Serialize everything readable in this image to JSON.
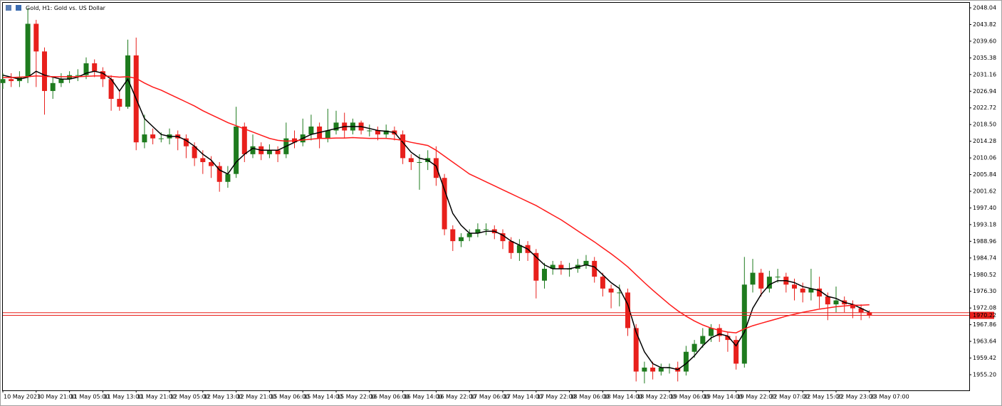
{
  "chart_data": {
    "type": "candlestick",
    "title": "Gold, H1:  Gold vs. US Dollar",
    "categories": [
      "10 May 2023",
      null,
      null,
      null,
      "10 May 21:00",
      null,
      null,
      null,
      "11 May 05:00",
      null,
      null,
      null,
      "11 May 13:00",
      null,
      null,
      null,
      "11 May 21:00",
      null,
      null,
      null,
      "12 May 05:00",
      null,
      null,
      null,
      "12 May 13:00",
      null,
      null,
      null,
      "12 May 21:00",
      null,
      null,
      null,
      "15 May 06:00",
      null,
      null,
      null,
      "15 May 14:00",
      null,
      null,
      null,
      "15 May 22:00",
      null,
      null,
      null,
      "16 May 06:00",
      null,
      null,
      null,
      "16 May 14:00",
      null,
      null,
      null,
      "16 May 22:00",
      null,
      null,
      null,
      "17 May 06:00",
      null,
      null,
      null,
      "17 May 14:00",
      null,
      null,
      null,
      "17 May 22:00",
      null,
      null,
      null,
      "18 May 06:00",
      null,
      null,
      null,
      "18 May 14:00",
      null,
      null,
      null,
      "18 May 22:00",
      null,
      null,
      null,
      "19 May 06:00",
      null,
      null,
      null,
      "19 May 14:00",
      null,
      null,
      null,
      "19 May 22:00",
      null,
      null,
      null,
      "22 May 07:00",
      null,
      null,
      null,
      "22 May 15:00",
      null,
      null,
      null,
      "22 May 23:00",
      null,
      null,
      null,
      "23 May 07:00"
    ],
    "open": [
      2029,
      2030,
      2029.5,
      2030.5,
      2044,
      2037,
      2027,
      2029,
      2030,
      2031,
      2031,
      2034,
      2032,
      2030,
      2025,
      2023,
      2036,
      2014,
      2016,
      2015,
      2015,
      2016,
      2015,
      2013,
      2010,
      2009,
      2008,
      2004,
      2006,
      2018,
      2011,
      2013,
      2011,
      2012,
      2011,
      2015,
      2014,
      2016,
      2018,
      2015,
      2017,
      2019,
      2017,
      2019,
      2017,
      2017,
      2016,
      2017,
      2016,
      2010,
      2009,
      2009,
      2010,
      2005,
      1992,
      1989,
      1990,
      1991,
      1992,
      1992,
      1991,
      1989,
      1986,
      1988,
      1986,
      1979,
      1982,
      1983,
      1982,
      1982,
      1983,
      1984,
      1980,
      1977,
      1976,
      1976,
      1967,
      1956,
      1957,
      1956,
      1957,
      1957,
      1956,
      1961,
      1963,
      1965,
      1967,
      1965,
      1964,
      1958,
      1978,
      1981,
      1977,
      1980,
      1980,
      1978,
      1977,
      1976,
      1977,
      1975,
      1973,
      1974,
      1973,
      1972,
      1971
    ],
    "high": [
      2031.5,
      2031.5,
      2032,
      2048,
      2045,
      2038,
      2030.5,
      2031.5,
      2032,
      2032.5,
      2035.5,
      2035,
      2033,
      2031,
      2027,
      2040,
      2040.5,
      2021,
      2017.5,
      2016.5,
      2017.5,
      2017,
      2016,
      2014,
      2012,
      2010.5,
      2009,
      2008,
      2023,
      2019,
      2016,
      2014,
      2013.5,
      2013,
      2019,
      2017,
      2020,
      2021,
      2019,
      2022.5,
      2022,
      2021.5,
      2020,
      2019.5,
      2018.5,
      2018,
      2018.5,
      2018,
      2017,
      2011,
      2011,
      2012,
      2013,
      2006,
      1993,
      1991,
      1992,
      1993.5,
      1993.5,
      1993,
      1992,
      1990,
      1989.5,
      1989,
      1987,
      1983.5,
      1984,
      1984,
      1983.5,
      1984.5,
      1985.5,
      1985,
      1981,
      1978,
      1978,
      1977,
      1968,
      1958.5,
      1958.5,
      1958,
      1958,
      1958.5,
      1962.5,
      1964,
      1967,
      1968,
      1968,
      1966,
      1965,
      1985,
      1984.5,
      1982,
      1981.5,
      1982,
      1981,
      1979.5,
      1978.5,
      1982,
      1980,
      1976,
      1977.5,
      1975,
      1974,
      1973,
      1971.5
    ],
    "low": [
      2027.5,
      2028,
      2028,
      2029,
      2028,
      2021,
      2025,
      2028,
      2029,
      2029.5,
      2030,
      2030.5,
      2028,
      2022,
      2022,
      2022.5,
      2012,
      2012.5,
      2013.5,
      2014,
      2013.5,
      2012,
      2010,
      2008,
      2006,
      2005,
      2001.5,
      2002.5,
      2005,
      2009,
      2010,
      2009.5,
      2010,
      2009,
      2010,
      2012.5,
      2013,
      2014.5,
      2012.5,
      2014,
      2016,
      2015,
      2016,
      2016,
      2015.5,
      2014.5,
      2015,
      2014.5,
      2008.5,
      2007,
      2002,
      2007,
      2003,
      1990.5,
      1986.5,
      1987.5,
      1989,
      1990,
      1990.5,
      1989.5,
      1987,
      1984.5,
      1984,
      1984,
      1974.5,
      1977,
      1980.5,
      1980.5,
      1980,
      1981,
      1982,
      1978.5,
      1975,
      1972,
      1972.5,
      1965,
      1953.5,
      1953,
      1954,
      1955,
      1955.5,
      1953.5,
      1955,
      1959.5,
      1962,
      1963.5,
      1963.5,
      1961,
      1956.5,
      1957,
      1976,
      1975,
      1976,
      1978.5,
      1976,
      1974,
      1973.5,
      1974,
      1972,
      1969,
      1971,
      1971,
      1969.5,
      1969,
      1969.5
    ],
    "close": [
      2030,
      2029.5,
      2030.5,
      2044,
      2037,
      2027,
      2029,
      2030,
      2031,
      2031,
      2034,
      2032,
      2030,
      2025,
      2023,
      2036,
      2014,
      2016,
      2015,
      2015,
      2016,
      2015,
      2013,
      2010,
      2009,
      2008,
      2004,
      2006,
      2018,
      2011,
      2013,
      2011,
      2012,
      2011,
      2015,
      2014,
      2016,
      2018,
      2015,
      2017,
      2019,
      2017,
      2019,
      2017,
      2017,
      2016,
      2017,
      2016,
      2010,
      2009,
      2009,
      2010,
      2005,
      1992,
      1989,
      1990,
      1991,
      1992,
      1992,
      1991,
      1989,
      1986,
      1988,
      1986,
      1979,
      1982,
      1983,
      1982,
      1982,
      1983,
      1984,
      1980,
      1977,
      1976,
      1976,
      1967,
      1956,
      1957,
      1956,
      1957,
      1957,
      1956,
      1961,
      1963,
      1965,
      1967,
      1965,
      1964,
      1958,
      1978,
      1981,
      1977,
      1980,
      1980,
      1978,
      1977,
      1976,
      1977,
      1975,
      1973,
      1974,
      1973,
      1972,
      1971,
      1970.2
    ],
    "up_color": "#1e7b1e",
    "down_color": "#e8201c",
    "series": [
      {
        "color": "#000000",
        "values": [
          2031,
          2030.5,
          2030,
          2030.5,
          2032,
          2031,
          2030.5,
          2030,
          2030,
          2030.5,
          2031.5,
          2032,
          2031.5,
          2030,
          2027,
          2030,
          2025,
          2020,
          2018,
          2016,
          2015.5,
          2015.5,
          2014.5,
          2013,
          2011,
          2009.5,
          2007,
          2006,
          2009,
          2011,
          2012.5,
          2012,
          2012,
          2012,
          2013,
          2014,
          2015,
          2016,
          2016.5,
          2017,
          2017.5,
          2018,
          2018,
          2018,
          2017.5,
          2017,
          2016.8,
          2016.5,
          2014,
          2011.5,
          2010,
          2009.5,
          2008,
          2002,
          1996,
          1993,
          1991,
          1991,
          1991.5,
          1991.5,
          1990.5,
          1989,
          1988,
          1987,
          1985,
          1983,
          1982,
          1982,
          1982,
          1982.5,
          1983,
          1982.5,
          1980.5,
          1978.5,
          1977,
          1973,
          1966,
          1961,
          1958,
          1957,
          1957,
          1956.5,
          1958,
          1960,
          1962.5,
          1964.5,
          1965.5,
          1965,
          1962.5,
          1966,
          1972,
          1975.5,
          1978,
          1979,
          1979,
          1978.5,
          1977.5,
          1977,
          1976.5,
          1975,
          1974.5,
          1973.5,
          1973,
          1972,
          1971
        ]
      },
      {
        "color": "#ff1a1a",
        "values": [
          2030.4,
          2030.4,
          2030.5,
          2030.6,
          2030.8,
          2030.7,
          2030.6,
          2030.6,
          2030.6,
          2030.6,
          2030.7,
          2030.8,
          2030.8,
          2030.7,
          2030.5,
          2030.6,
          2030.2,
          2029,
          2028,
          2027.2,
          2026.2,
          2025.2,
          2024.2,
          2023.2,
          2022,
          2021,
          2020,
          2019,
          2018.2,
          2017.4,
          2016.6,
          2015.8,
          2015,
          2014.5,
          2014.3,
          2014.4,
          2014.6,
          2014.8,
          2015,
          2015,
          2015.1,
          2015.1,
          2015.2,
          2015.1,
          2015,
          2015,
          2015,
          2014.8,
          2014.5,
          2014,
          2013.6,
          2013.2,
          2012,
          2010.5,
          2009,
          2007.5,
          2006,
          2005,
          2004,
          2003,
          2002,
          2001,
          2000,
          1999,
          1998,
          1996.8,
          1995.6,
          1994.4,
          1993,
          1991.6,
          1990.2,
          1988.8,
          1987.3,
          1985.8,
          1984.2,
          1982.5,
          1980.5,
          1978.5,
          1976.6,
          1974.8,
          1973,
          1971.4,
          1970,
          1968.8,
          1967.8,
          1967,
          1966.4,
          1966,
          1965.8,
          1966.8,
          1967.6,
          1968.2,
          1968.8,
          1969.4,
          1970,
          1970.5,
          1971,
          1971.4,
          1971.8,
          1972.1,
          1972.4,
          1972.6,
          1972.8,
          1972.8,
          1972.9
        ]
      }
    ],
    "price_lines": [
      1970.9,
      1970.22
    ],
    "price_line_color": "#e8201c",
    "ylim": [
      1951.24,
      2049.3
    ],
    "yticks": [
      2048.04,
      2043.82,
      {
        "value": 2039.6,
        "label": "2039.60"
      },
      2035.38,
      2031.16,
      2026.94,
      2022.72,
      {
        "value": 2018.5,
        "label": "2018.50"
      },
      2014.28,
      2010.06,
      2005.84,
      2001.62,
      {
        "value": 1997.4,
        "label": "1997.40"
      },
      1993.18,
      1988.96,
      1984.74,
      1980.52,
      {
        "value": 1976.3,
        "label": "1976.30"
      },
      1972.08,
      1967.86,
      1963.64,
      1959.42,
      {
        "value": 1955.2,
        "label": "1955.20"
      }
    ]
  }
}
